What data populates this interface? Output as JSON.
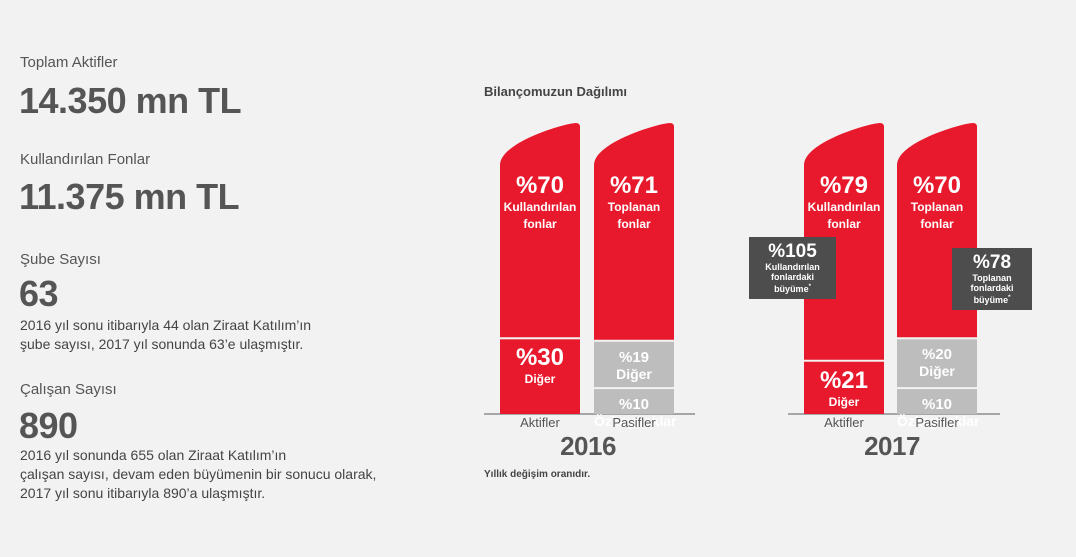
{
  "stats": [
    {
      "label": "Toplam Aktifler",
      "value": "14.350 mn TL",
      "note": []
    },
    {
      "label": "Kullandırılan Fonlar",
      "value": "11.375 mn TL",
      "note": []
    },
    {
      "label": "Şube Sayısı",
      "value": "63",
      "note": [
        "2016 yıl sonu itibarıyla 44 olan Ziraat Katılım’ın",
        "şube sayısı, 2017 yıl sonunda 63’e ulaşmıştır."
      ]
    },
    {
      "label": "Çalışan Sayısı",
      "value": "890",
      "note": [
        "2016 yıl sonunda 655 olan Ziraat Katılım’ın",
        "çalışan sayısı, devam eden büyümenin bir sonucu olarak,",
        "2017 yıl sonu itibarıyla 890’a ulaşmıştır."
      ]
    }
  ],
  "footnote": "Yıllık değişim oranıdır.",
  "colors": {
    "red": "#e8192c",
    "grey": "#bdbdbd",
    "dark": "#4d4d4d",
    "axis": "#8c8c8c"
  },
  "chart_data": {
    "type": "bar",
    "title": "Bilançomuzun Dağılımı",
    "stacked": true,
    "unit": "%",
    "groups": [
      {
        "year": "2016",
        "bars": [
          {
            "category": "Aktifler",
            "segments": [
              {
                "name": "Kullandırılan fonlar",
                "pct": "%70",
                "label_lines": [
                  "Kullandırılan",
                  "fonlar"
                ],
                "value": 70,
                "color": "red"
              },
              {
                "name": "Diğer",
                "pct": "%30",
                "label_lines": [
                  "Diğer"
                ],
                "value": 30,
                "color": "red"
              }
            ]
          },
          {
            "category": "Pasifler",
            "segments": [
              {
                "name": "Toplanan fonlar",
                "pct": "%71",
                "label_lines": [
                  "Toplanan",
                  "fonlar"
                ],
                "value": 71,
                "color": "red"
              },
              {
                "name": "Diğer",
                "pct": "%19",
                "label_lines": [
                  "Diğer"
                ],
                "value": 19,
                "color": "grey"
              },
              {
                "name": "Özkaynaklar",
                "pct": "%10",
                "label_lines": [
                  "Özkaynaklar"
                ],
                "value": 10,
                "color": "grey"
              }
            ]
          }
        ]
      },
      {
        "year": "2017",
        "bars": [
          {
            "category": "Aktifler",
            "segments": [
              {
                "name": "Kullandırılan fonlar",
                "pct": "%79",
                "label_lines": [
                  "Kullandırılan",
                  "fonlar"
                ],
                "value": 79,
                "color": "red"
              },
              {
                "name": "Diğer",
                "pct": "%21",
                "label_lines": [
                  "Diğer"
                ],
                "value": 21,
                "color": "red"
              }
            ]
          },
          {
            "category": "Pasifler",
            "segments": [
              {
                "name": "Toplanan fonlar",
                "pct": "%70",
                "label_lines": [
                  "Toplanan",
                  "fonlar"
                ],
                "value": 70,
                "color": "red"
              },
              {
                "name": "Diğer",
                "pct": "%20",
                "label_lines": [
                  "Diğer"
                ],
                "value": 20,
                "color": "grey"
              },
              {
                "name": "Özkaynaklar",
                "pct": "%10",
                "label_lines": [
                  "Özkaynaklar"
                ],
                "value": 10,
                "color": "grey"
              }
            ]
          }
        ]
      }
    ],
    "annotations": [
      {
        "pct": "%105",
        "lines": [
          "Kullandırılan",
          "fonlardaki",
          "büyüme"
        ],
        "marker": "*",
        "value": 105
      },
      {
        "pct": "%78",
        "lines": [
          "Toplanan",
          "fonlardaki",
          "büyüme"
        ],
        "marker": "*",
        "value": 78
      }
    ]
  }
}
